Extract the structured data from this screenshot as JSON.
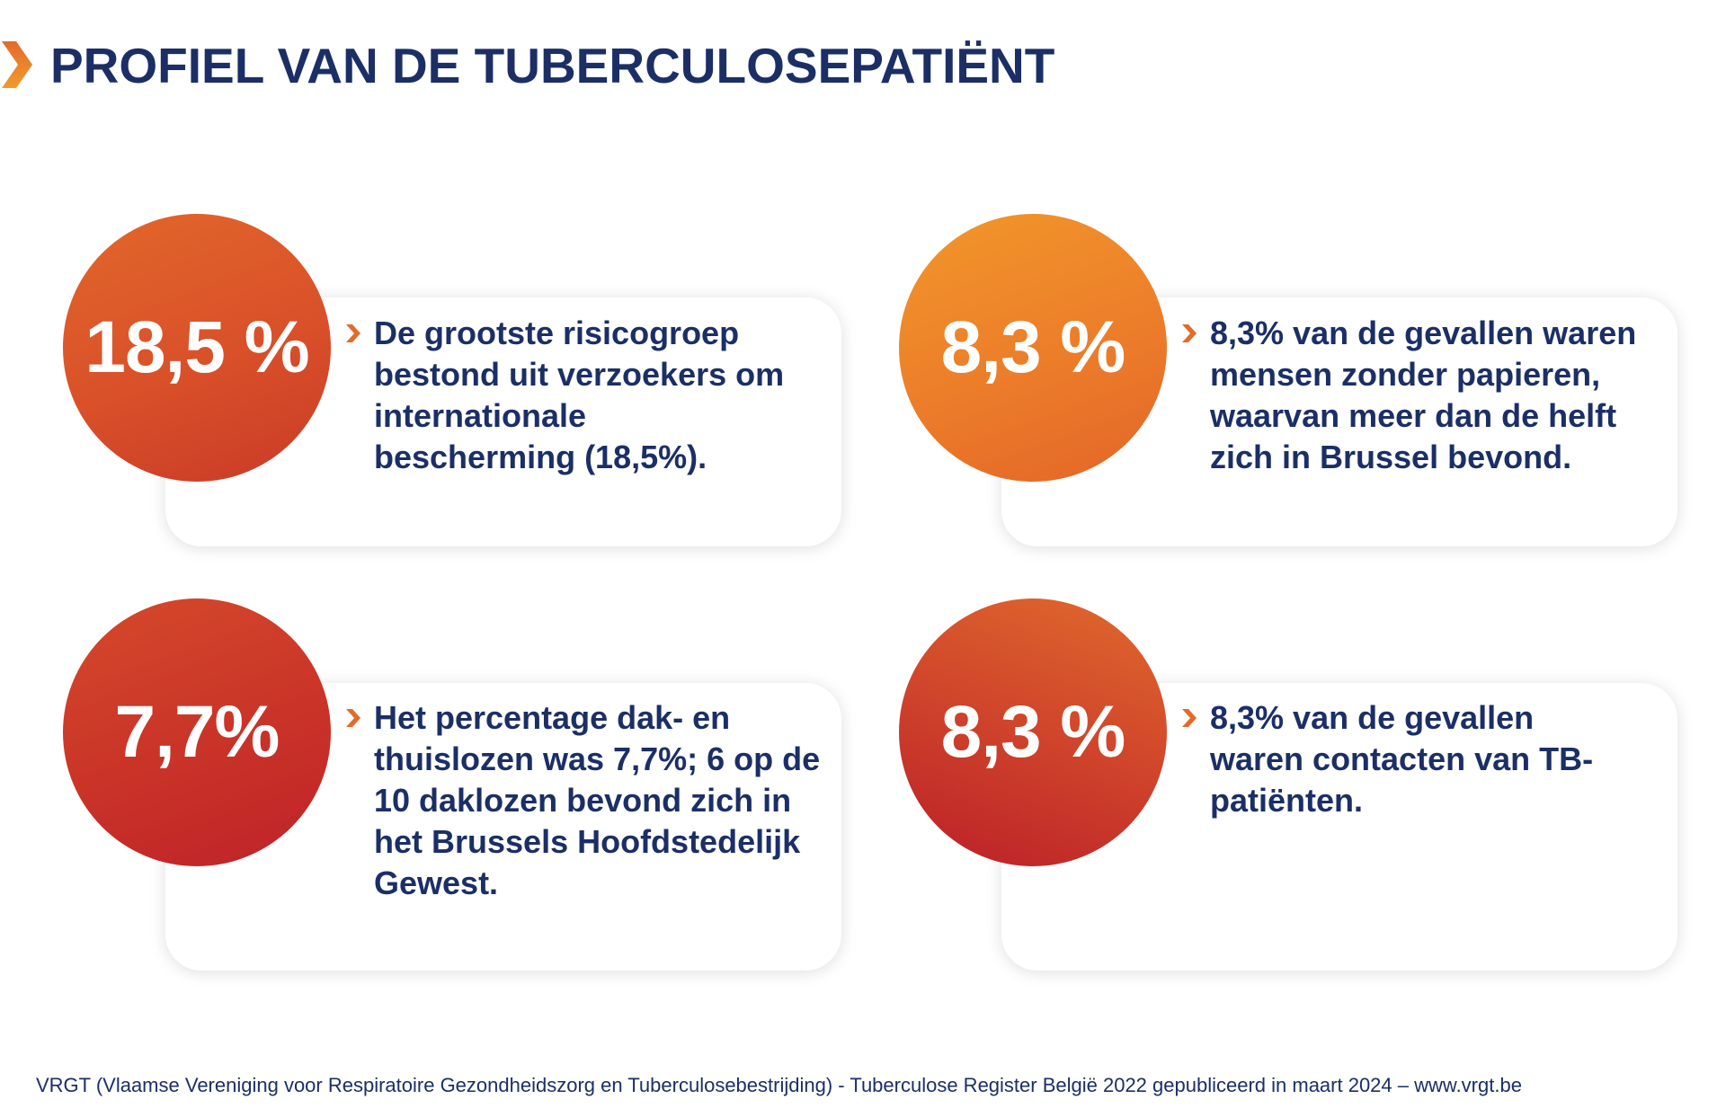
{
  "title": "PROFIEL VAN DE TUBERCULOSEPATIËNT",
  "stats": [
    {
      "value": "18,5 %",
      "text": "De grootste risicogroep bestond uit verzoekers om internationale bescherming (18,5%)."
    },
    {
      "value": "8,3 %",
      "text": "8,3% van de gevallen waren mensen zonder papieren, waarvan meer dan de helft zich in Brussel bevond."
    },
    {
      "value": "7,7%",
      "text": "Het percentage dak- en thuislozen was 7,7%; 6 op de 10 daklozen bevond zich in het Brussels Hoofdstedelijk Gewest."
    },
    {
      "value": "8,3 %",
      "text": "8,3% van de gevallen waren contacten van TB-patiënten."
    }
  ],
  "footer": "VRGT (Vlaamse Vereniging voor Respiratoire Gezondheidszorg en Tuberculosebestrijding) - Tuberculose Register België 2022 gepubliceerd in maart 2024 – www.vrgt.be",
  "colors": {
    "navy": "#1b2f66",
    "orange": "#e36b2a",
    "red": "#c0272d"
  }
}
